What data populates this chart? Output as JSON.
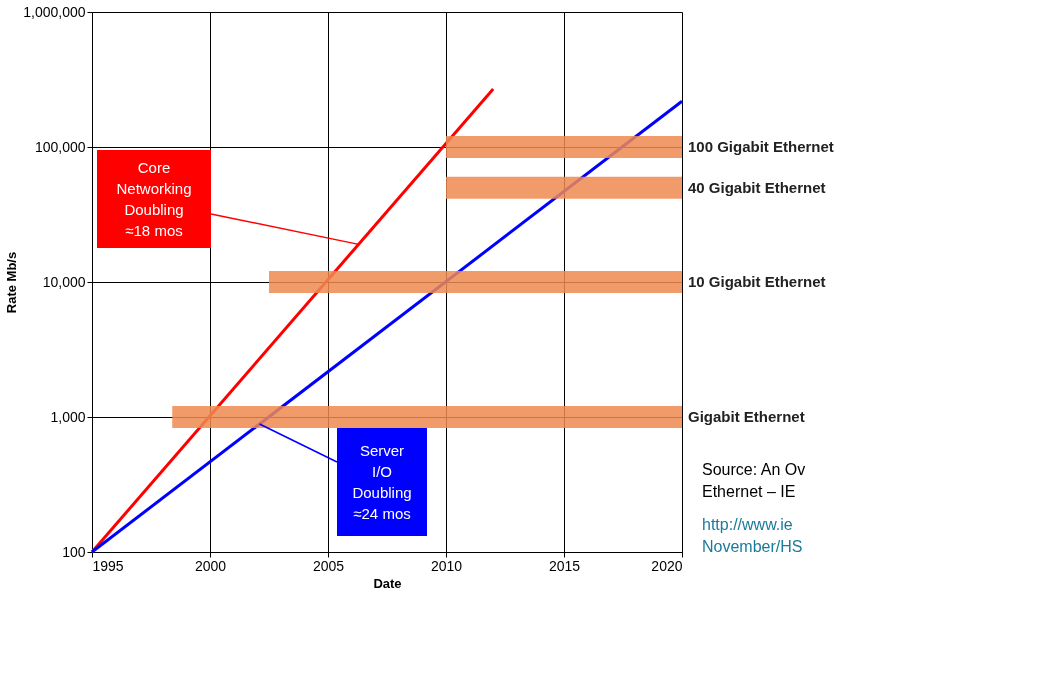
{
  "chart_data": {
    "type": "line",
    "xlabel": "Date",
    "ylabel": "Rate Mb/s",
    "xlim": [
      1995,
      2020
    ],
    "xticks": [
      1995,
      2000,
      2005,
      2010,
      2015,
      2020
    ],
    "ylim": [
      100,
      1000000
    ],
    "yticks": [
      100,
      {
        "value": 1000,
        "label": "1,000"
      },
      {
        "value": 10000,
        "label": "10,000"
      },
      {
        "value": 100000,
        "label": "100,000"
      },
      {
        "value": 1000000,
        "label": "1,000,000"
      }
    ],
    "log": "y",
    "grid": true,
    "series": [
      {
        "color": "#ff0000",
        "x": [
          1995,
          2012
        ],
        "values": [
          100,
          269000
        ]
      },
      {
        "color": "#0000ff",
        "x": [
          1995,
          2020
        ],
        "values": [
          100,
          218000
        ]
      },
      {
        "name": "100 Gigabit Ethernet",
        "color": "#f08a50",
        "x": [
          2010,
          2020
        ],
        "values": [
          100000,
          100000
        ]
      },
      {
        "name": "40 Gigabit Ethernet",
        "color": "#f08a50",
        "x": [
          2010,
          2020
        ],
        "values": [
          50000,
          50000
        ]
      },
      {
        "name": "10 Gigabit Ethernet",
        "color": "#f08a50",
        "x": [
          2002.5,
          2020
        ],
        "values": [
          10000,
          10000
        ]
      },
      {
        "name": "Gigabit Ethernet",
        "color": "#f08a50",
        "x": [
          1998.4,
          2020
        ],
        "values": [
          1000,
          1000
        ]
      }
    ],
    "annotations": [
      {
        "text": "Core\nNetworking\nDoubling\n≈18 mos",
        "x": 2006.3,
        "y": 19000
      },
      {
        "text": "Server\nI/O\nDoubling\n≈24 mos",
        "x": 2002.1,
        "y": 888
      },
      "Source: An Ov\nEthernet – IE",
      "http://www.ie\nNovember/HS"
    ]
  }
}
